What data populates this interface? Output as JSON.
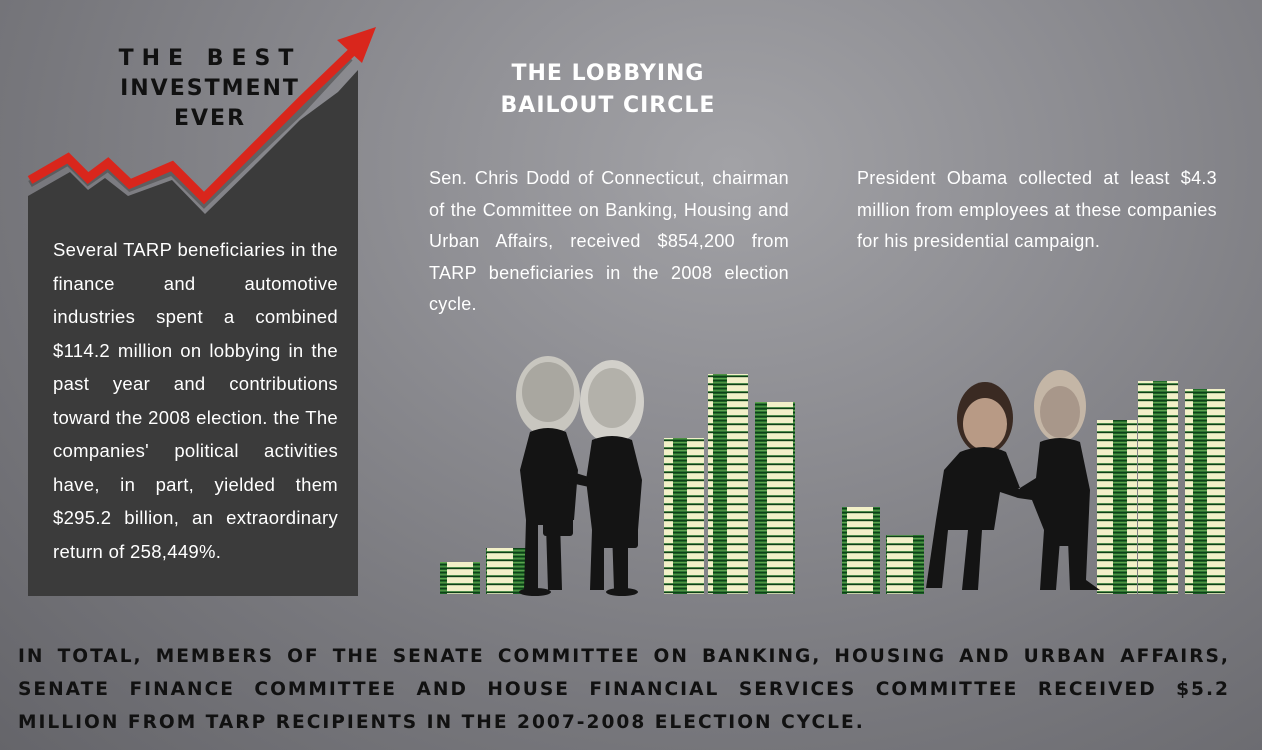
{
  "best_investment": {
    "title_lines": [
      "THE BEST",
      "INVESTMENT",
      "EVER"
    ],
    "body": "Several TARP beneficiaries in the finance and automotive industries spent a combined $114.2 million on lobbying in the past year and contributions toward the 2008 election. the The companies' political activities have, in part, yielded them $295.2 billion, an extraordinary return of 258,449%."
  },
  "lobbying_circle": {
    "title_lines": [
      "THE LOBBYING",
      "BAILOUT CIRCLE"
    ],
    "dodd_text": "Sen. Chris Dodd of Connecticut, chairman of the Committee on Banking, Housing and Urban Affairs, received $854,200 from TARP beneficiaries in the 2008 election cycle.",
    "obama_text": "President Obama collected at least $4.3 million from employees at these companies for his presidential campaign."
  },
  "total_text": "IN TOTAL, MEMBERS OF THE SENATE COMMITTEE ON BANKING, HOUSING AND URBAN AFFAIRS, SENATE FINANCE COMMITTEE AND HOUSE FINANCIAL SERVICES COMMITTEE RECEIVED $5.2 MILLION FROM TARP RECIPIENTS IN THE 2007-2008 ELECTION CYCLE.",
  "colors": {
    "background": "#8e8e93",
    "panel": "#3b3b3b",
    "arrow": "#d9261c",
    "money_green": "#1f6e2a",
    "money_light": "#f2f0c8",
    "silhouette": "#141414"
  },
  "icons": [
    "trend-arrow-icon",
    "money-stack-icon",
    "handshake-silhouette-icon"
  ]
}
